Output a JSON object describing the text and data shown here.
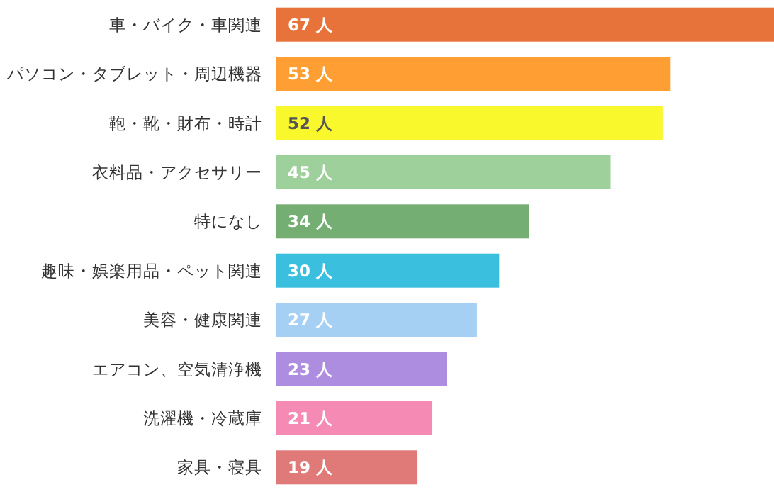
{
  "chart_data": {
    "type": "bar",
    "orientation": "horizontal",
    "categories": [
      "車・バイク・車関連",
      "パソコン・タブレット・周辺機器",
      "鞄・靴・財布・時計",
      "衣料品・アクセサリー",
      "特になし",
      "趣味・娯楽用品・ペット関連",
      "美容・健康関連",
      "エアコン、空気清浄機",
      "洗濯機・冷蔵庫",
      "家具・寝具"
    ],
    "values": [
      67,
      53,
      52,
      45,
      34,
      30,
      27,
      23,
      21,
      19
    ],
    "value_labels": [
      "67 人",
      "53 人",
      "52 人",
      "45 人",
      "34 人",
      "30 人",
      "27 人",
      "23 人",
      "21 人",
      "19 人"
    ],
    "colors": [
      "#e8733a",
      "#ff9f33",
      "#f8f82c",
      "#9dd09a",
      "#74ae72",
      "#3bbfdf",
      "#a6cff4",
      "#ad8de0",
      "#f58bb5",
      "#df7a78"
    ]
  }
}
